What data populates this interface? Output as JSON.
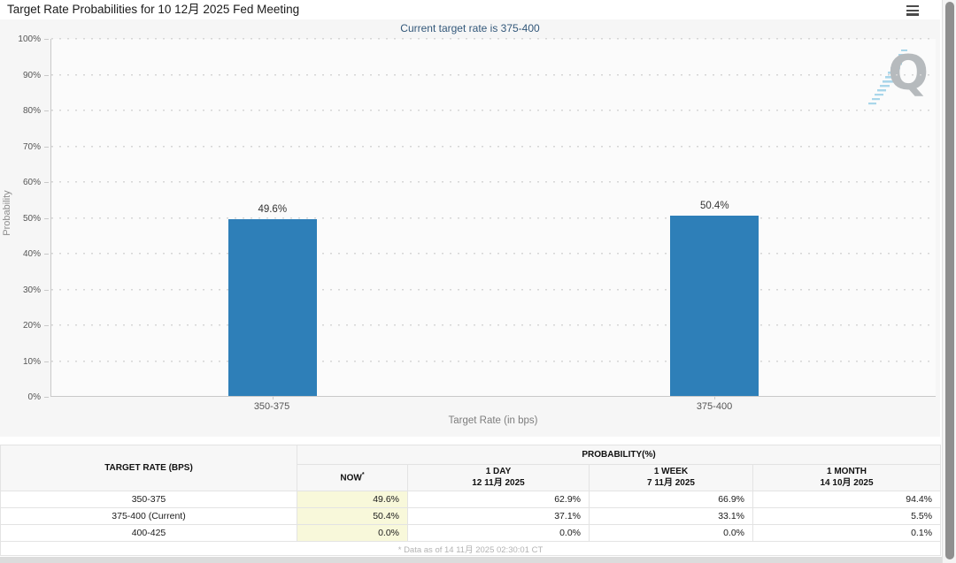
{
  "page": {
    "title": "Target Rate Probabilities for 10 12月 2025 Fed Meeting",
    "watermark": "Q"
  },
  "chart_data": {
    "type": "bar",
    "title": "Target Rate Probabilities for 10 12月 2025 Fed Meeting",
    "subtitle": "Current target rate is 375-400",
    "categories": [
      "350-375",
      "375-400"
    ],
    "values": [
      49.6,
      50.4
    ],
    "labels": [
      "49.6%",
      "50.4%"
    ],
    "xlabel": "Target Rate (in bps)",
    "ylabel": "Probability",
    "ylim": [
      0,
      100
    ],
    "yticks": [
      "0%",
      "10%",
      "20%",
      "30%",
      "40%",
      "50%",
      "60%",
      "70%",
      "80%",
      "90%",
      "100%"
    ],
    "grid": "dotted-horizontal",
    "legend": "none",
    "bar_color": "#2e7fb8"
  },
  "table": {
    "col_target_rate": "TARGET RATE (BPS)",
    "col_probability": "PROBABILITY(%)",
    "col_now": "NOW",
    "now_asterisk": "*",
    "columns": [
      {
        "label": "1 DAY",
        "date": "12 11月 2025"
      },
      {
        "label": "1 WEEK",
        "date": "7 11月 2025"
      },
      {
        "label": "1 MONTH",
        "date": "14 10月 2025"
      }
    ],
    "rows": [
      {
        "target_rate": "350-375",
        "now": "49.6%",
        "day": "62.9%",
        "week": "66.9%",
        "month": "94.4%"
      },
      {
        "target_rate": "375-400 (Current)",
        "now": "50.4%",
        "day": "37.1%",
        "week": "33.1%",
        "month": "5.5%"
      },
      {
        "target_rate": "400-425",
        "now": "0.0%",
        "day": "0.0%",
        "week": "0.0%",
        "month": "0.1%"
      }
    ],
    "footnote": "* Data as of 14 11月 2025 02:30:01 CT",
    "now_col_bg": "#f8f8da"
  }
}
